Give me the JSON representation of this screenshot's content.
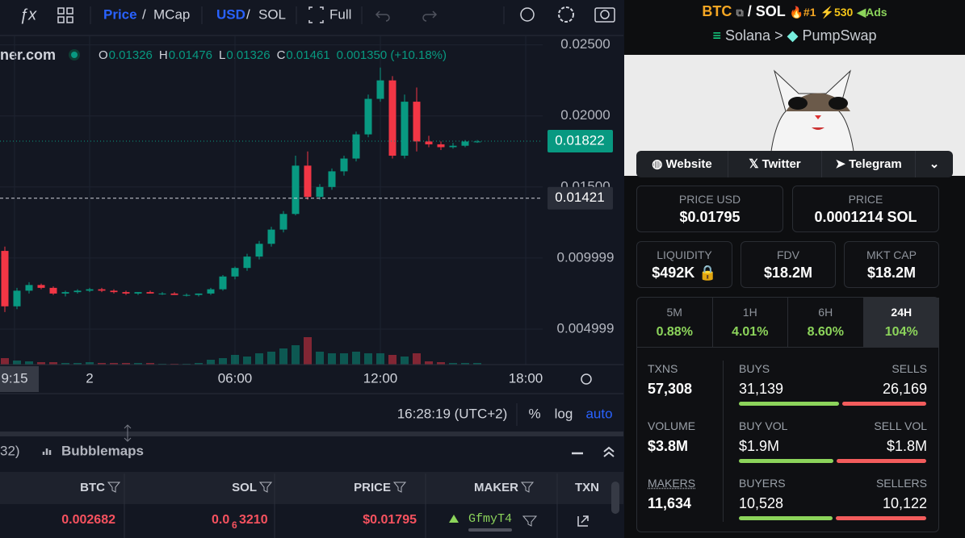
{
  "toolbar": {
    "price": "Price",
    "slash1": "/",
    "mcap": "MCap",
    "usd": "USD",
    "slash2": "/",
    "sol": "SOL",
    "full": "Full"
  },
  "chart_data": {
    "type": "candlestick",
    "source": "ner.com",
    "legend": [
      "O",
      "0.01326",
      "H",
      "0.01476",
      "L",
      "0.01326",
      "C",
      "0.01461",
      "0.001350 (+10.18%)"
    ],
    "up_color": "#089981",
    "down_color": "#f23645",
    "x": [
      -3.5,
      -3,
      -2.5,
      -2,
      -1.5,
      -1,
      -0.5,
      0,
      0.5,
      1,
      1.5,
      2,
      2.5,
      3,
      3.5,
      4,
      4.5,
      5,
      5.5,
      6,
      6.5,
      7,
      7.5,
      8,
      8.5,
      9,
      9.5,
      10,
      10.5,
      11,
      11.5,
      12,
      12.5,
      13,
      13.5,
      14,
      14.5,
      15,
      15.5,
      16
    ],
    "open": [
      0.0105,
      0.0066,
      0.0077,
      0.0081,
      0.0079,
      0.0075,
      0.0076,
      0.0077,
      0.0078,
      0.0077,
      0.0076,
      0.0075,
      0.0076,
      0.0075,
      0.0075,
      0.0074,
      0.0074,
      0.0075,
      0.0078,
      0.0087,
      0.0093,
      0.0101,
      0.011,
      0.012,
      0.0131,
      0.0165,
      0.0143,
      0.015,
      0.0161,
      0.017,
      0.0187,
      0.0212,
      0.0225,
      0.0172,
      0.021,
      0.0182,
      0.018,
      0.0178,
      0.0179,
      0.0182
    ],
    "high": [
      0.0108,
      0.0079,
      0.0083,
      0.0082,
      0.008,
      0.0077,
      0.0078,
      0.0079,
      0.0079,
      0.0078,
      0.0077,
      0.0076,
      0.0077,
      0.0076,
      0.0076,
      0.0075,
      0.0075,
      0.0079,
      0.0088,
      0.0094,
      0.0103,
      0.0112,
      0.0122,
      0.0133,
      0.0172,
      0.0175,
      0.0152,
      0.0163,
      0.0172,
      0.0189,
      0.0215,
      0.0234,
      0.0228,
      0.0215,
      0.022,
      0.0186,
      0.0182,
      0.0181,
      0.0183,
      0.0183
    ],
    "low": [
      0.0062,
      0.0064,
      0.0075,
      0.0078,
      0.0074,
      0.0073,
      0.0075,
      0.0076,
      0.0076,
      0.0075,
      0.0074,
      0.0074,
      0.0075,
      0.0074,
      0.0074,
      0.0073,
      0.0073,
      0.0074,
      0.0077,
      0.0085,
      0.0091,
      0.0099,
      0.0108,
      0.0118,
      0.013,
      0.0141,
      0.0141,
      0.0148,
      0.0158,
      0.0168,
      0.0185,
      0.021,
      0.017,
      0.017,
      0.0175,
      0.0178,
      0.0176,
      0.0177,
      0.0178,
      0.0181
    ],
    "close": [
      0.0066,
      0.0077,
      0.0081,
      0.0079,
      0.0075,
      0.0076,
      0.0077,
      0.0078,
      0.0077,
      0.0076,
      0.0075,
      0.0076,
      0.0075,
      0.0075,
      0.0074,
      0.0074,
      0.0075,
      0.0078,
      0.0087,
      0.0093,
      0.0101,
      0.011,
      0.012,
      0.0131,
      0.0165,
      0.0143,
      0.015,
      0.0161,
      0.017,
      0.0187,
      0.0212,
      0.0225,
      0.0172,
      0.021,
      0.0182,
      0.018,
      0.0178,
      0.0179,
      0.0182,
      0.0182
    ],
    "volume": [
      8,
      5,
      4,
      3,
      3,
      2,
      2,
      3,
      2,
      2,
      2,
      2,
      2,
      1,
      1,
      1,
      2,
      6,
      8,
      12,
      10,
      14,
      16,
      20,
      24,
      34,
      16,
      14,
      14,
      16,
      14,
      14,
      12,
      10,
      14,
      4,
      3,
      2,
      2,
      2
    ],
    "ylim": [
      0.0025,
      0.026
    ],
    "yticks": [
      {
        "value": 0.025,
        "label": "0.02500"
      },
      {
        "value": 0.02,
        "label": "0.02000"
      },
      {
        "value": 0.015,
        "label": "0.01500"
      },
      0.009999,
      0.004999
    ],
    "price_lines": [
      0.01822,
      0.01421
    ],
    "xlim": [
      -3.7,
      18.7
    ],
    "xticks": [
      {
        "value": -3.1,
        "label": "9:15"
      },
      {
        "value": 0,
        "label": "2"
      },
      {
        "value": 6,
        "label": "06:00"
      },
      {
        "value": 12,
        "label": "12:00"
      },
      {
        "value": 18,
        "label": "18:00"
      }
    ],
    "grid": true
  },
  "chart_footer": {
    "time": "16:28:19 (UTC+2)",
    "percent": "%",
    "log": "log",
    "auto": "auto"
  },
  "bottom_panel": {
    "tab_partial": "32)",
    "bubblemaps": "Bubblemaps"
  },
  "table": {
    "headers": [
      "BTC",
      "SOL",
      "PRICE",
      "MAKER",
      "TXN"
    ],
    "row": {
      "btc": "0.002682",
      "sol_prefix": "0.0",
      "sol_zeros": "6",
      "sol_digits": "3210",
      "price": "$0.01795",
      "maker": "GfmyT4"
    }
  },
  "pair": {
    "base": "BTC",
    "slash": "/",
    "quote": "SOL",
    "rank": "#1",
    "boosts": "530",
    "ads": "Ads",
    "chain": "Solana",
    "sep": ">",
    "dex": "PumpSwap"
  },
  "links": [
    "Website",
    "Twitter",
    "Telegram"
  ],
  "stats": {
    "price_usd_label": "PRICE USD",
    "price_usd": "$0.01795",
    "price_label": "PRICE",
    "price": "0.0001214 SOL",
    "liquidity_label": "LIQUIDITY",
    "liquidity": "$492K",
    "fdv_label": "FDV",
    "fdv": "$18.2M",
    "mcap_label": "MKT CAP",
    "mcap": "$18.2M"
  },
  "periods": [
    {
      "label": "5M",
      "change": "0.88%"
    },
    {
      "label": "1H",
      "change": "4.01%"
    },
    {
      "label": "6H",
      "change": "8.60%"
    },
    {
      "label": "24H",
      "change": "104%"
    }
  ],
  "activity": {
    "txns_label": "TXNS",
    "txns": "57,308",
    "buys_label": "BUYS",
    "buys": "31,139",
    "sells_label": "SELLS",
    "sells": "26,169",
    "volume_label": "VOLUME",
    "volume": "$3.8M",
    "buy_vol_label": "BUY VOL",
    "buy_vol": "$1.9M",
    "sell_vol_label": "SELL VOL",
    "sell_vol": "$1.8M",
    "makers_label": "MAKERS",
    "makers": "11,634",
    "buyers_label": "BUYERS",
    "buyers": "10,528",
    "sellers_label": "SELLERS",
    "sellers": "10,122"
  }
}
